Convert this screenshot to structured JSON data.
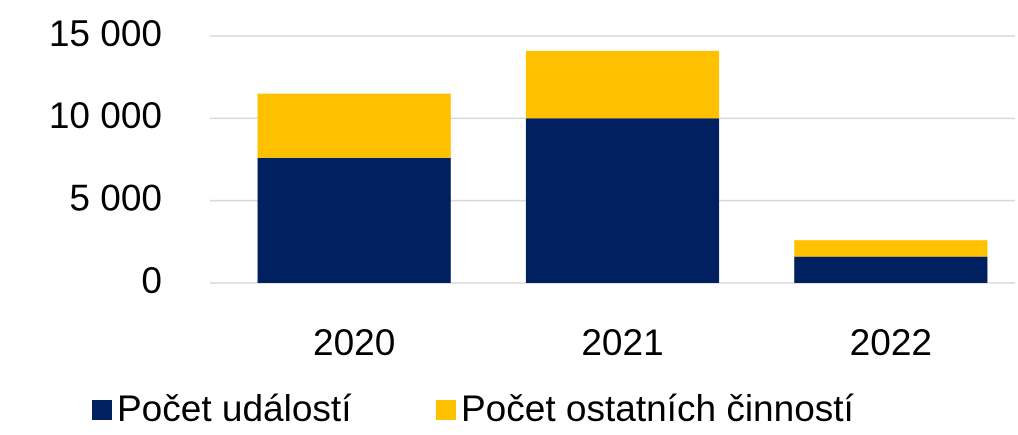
{
  "chart_data": {
    "type": "stacked_bar",
    "categories": [
      "2020",
      "2021",
      "2022"
    ],
    "series": [
      {
        "name": "Počet událostí",
        "color": "#002060",
        "values": [
          7600,
          10000,
          1600
        ]
      },
      {
        "name": "Počet ostatních činností",
        "color": "#ffc000",
        "values": [
          3900,
          4100,
          1000
        ]
      }
    ],
    "ylim": [
      0,
      15000
    ],
    "yticks": [
      0,
      {
        "value": 5000,
        "label": "5 000"
      },
      {
        "value": 10000,
        "label": "10 000"
      },
      {
        "value": 15000,
        "label": "15 000"
      }
    ],
    "grid": true,
    "legend": "bottom"
  }
}
